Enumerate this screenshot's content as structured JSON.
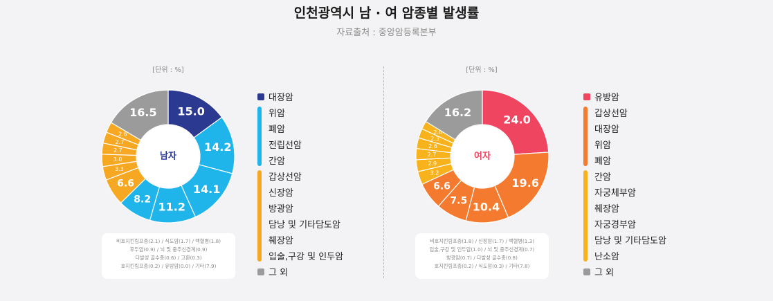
{
  "title": "인천광역시 남 · 여 암종별 발생률",
  "subtitle": "자료출처 : 중앙암등록본부",
  "colors": {
    "navy": "#2b3990",
    "sky": "#1fb5ea",
    "orange_yellow": "#f7a823",
    "gray": "#9b9b9b",
    "red": "#ef4560",
    "orange": "#f37a2e",
    "yellow": "#f8b21c"
  },
  "male": {
    "unit": "[단위 : %]",
    "center_label": "남자",
    "note_lines": [
      "비호지킨림프종(2.1) / 식도암(1.7) / 백혈병(1.8)",
      "후두암(0.9) / 뇌 및 중추신경계(0.9)",
      "다발성 골수종(0.6) / 고환(0.3)",
      "호지킨림프종(0.2)  / 유방암(0.0) / 기타(7.9)"
    ],
    "legend": {
      "top": "대장암",
      "group1": [
        "위암",
        "폐암",
        "전립선암",
        "간암"
      ],
      "group2": [
        "갑상선암",
        "신장암",
        "방광암",
        "담낭 및 기타담도암",
        "췌장암",
        "입술,구강 및 인두암"
      ],
      "bottom": "그 외"
    }
  },
  "female": {
    "unit": "[단위 : %]",
    "center_label": "여자",
    "note_lines": [
      "비호지킨림프종(1.8) / 신장암(1.7) / 백혈병(1.3)",
      "입술,구강 및 인두암(1.0) / 뇌 및 중추신경계(0.7)",
      "방광암(0.7) / 다발성 골수종(0.8)",
      "호지킨림프종(0.2) / 식도암(0.3) / 기타(7.8)"
    ],
    "legend": {
      "top": "유방암",
      "group1": [
        "갑상선암",
        "대장암",
        "위암",
        "폐암"
      ],
      "group2": [
        "간암",
        "자궁체부암",
        "췌장암",
        "자궁경부암",
        "담낭 및 기타담도암",
        "난소암"
      ],
      "bottom": "그 외"
    }
  },
  "chart_data": [
    {
      "type": "pie",
      "title": "남자",
      "unit": "%",
      "categories": [
        "대장암",
        "위암",
        "폐암",
        "전립선암",
        "간암",
        "갑상선암",
        "신장암",
        "방광암",
        "담낭 및 기타담도암",
        "췌장암",
        "입술,구강 및 인두암",
        "그 외"
      ],
      "values": [
        15.0,
        14.2,
        14.1,
        11.2,
        8.2,
        6.6,
        3.3,
        3.0,
        2.7,
        2.7,
        2.6,
        16.5
      ],
      "labels": [
        "15.0",
        "14.2",
        "14.1",
        "11.2",
        "8.2",
        "6.6",
        "3.3",
        "3.0",
        "2.7",
        "2.7",
        "2.6",
        "16.5"
      ],
      "colors": [
        "#2b3990",
        "#1fb5ea",
        "#1fb5ea",
        "#1fb5ea",
        "#1fb5ea",
        "#f7a823",
        "#f7a823",
        "#f7a823",
        "#f7a823",
        "#f7a823",
        "#f7a823",
        "#9b9b9b"
      ]
    },
    {
      "type": "pie",
      "title": "여자",
      "unit": "%",
      "categories": [
        "유방암",
        "갑상선암",
        "대장암",
        "위암",
        "폐암",
        "간암",
        "자궁체부암",
        "췌장암",
        "자궁경부암",
        "담낭 및 기타담도암",
        "난소암",
        "그 외"
      ],
      "values": [
        24.0,
        19.6,
        10.4,
        7.5,
        6.6,
        3.2,
        2.9,
        2.7,
        2.6,
        2.3,
        2.0,
        16.2
      ],
      "labels": [
        "24.0",
        "19.6",
        "10.4",
        "7.5",
        "6.6",
        "3.2",
        "2.9",
        "2.7",
        "2.6",
        "2.3",
        "2.0",
        "16.2"
      ],
      "colors": [
        "#ef4560",
        "#f37a2e",
        "#f37a2e",
        "#f37a2e",
        "#f37a2e",
        "#f8b21c",
        "#f8b21c",
        "#f8b21c",
        "#f8b21c",
        "#f8b21c",
        "#f8b21c",
        "#9b9b9b"
      ]
    }
  ]
}
